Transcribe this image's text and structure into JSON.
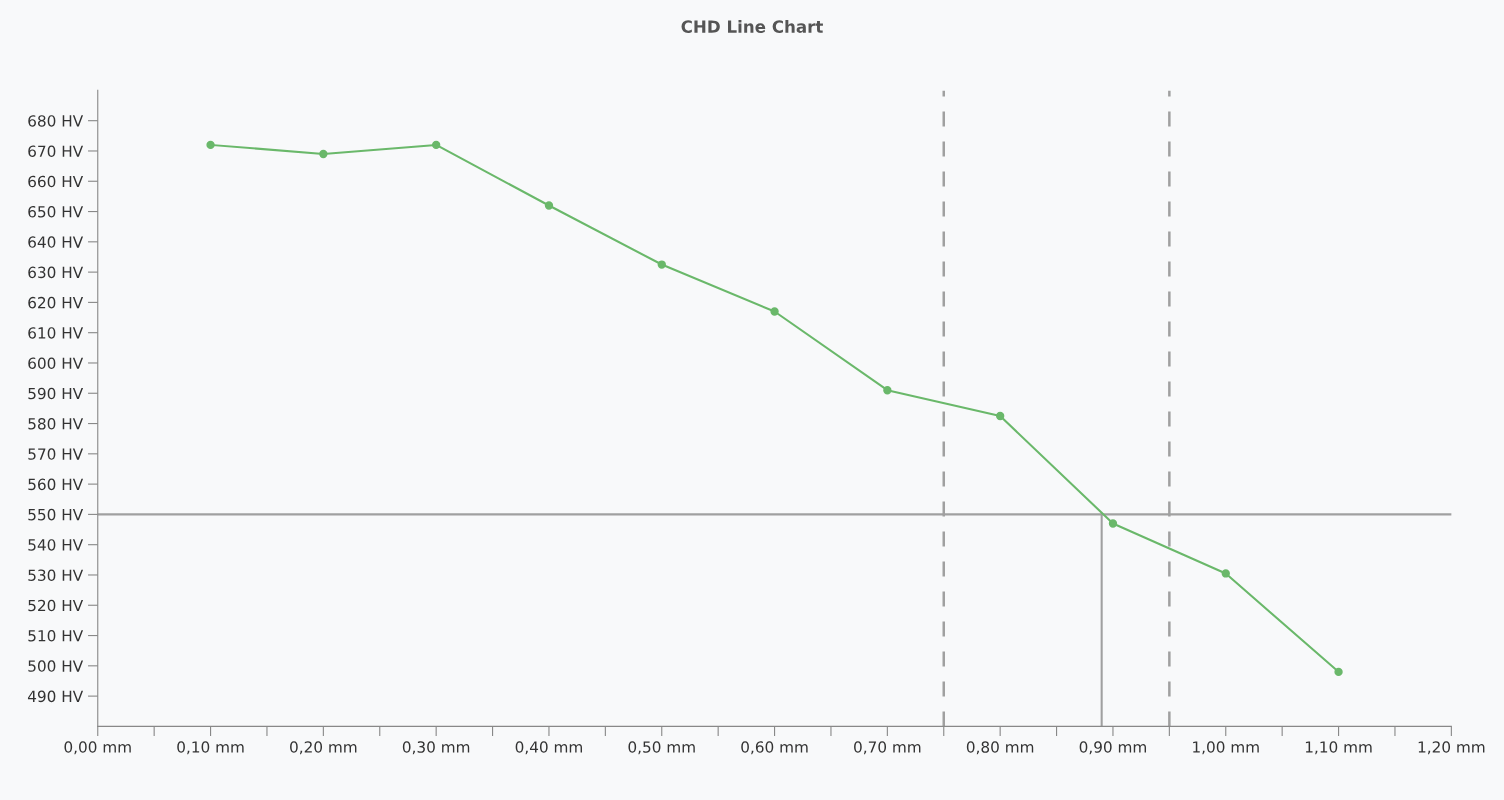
{
  "chart_data": {
    "type": "line",
    "title": "CHD Line Chart",
    "xlim": [
      0,
      1.2
    ],
    "xticks": [
      {
        "value": 0,
        "label": "0,00 mm"
      },
      {
        "value": 0.05,
        "label": null
      },
      {
        "value": 0.1,
        "label": "0,10 mm"
      },
      {
        "value": 0.15,
        "label": null
      },
      {
        "value": 0.2,
        "label": "0,20 mm"
      },
      {
        "value": 0.25,
        "label": null
      },
      {
        "value": 0.3,
        "label": "0,30 mm"
      },
      {
        "value": 0.35,
        "label": null
      },
      {
        "value": 0.4,
        "label": "0,40 mm"
      },
      {
        "value": 0.45,
        "label": null
      },
      {
        "value": 0.5,
        "label": "0,50 mm"
      },
      {
        "value": 0.55,
        "label": null
      },
      {
        "value": 0.6,
        "label": "0,60 mm"
      },
      {
        "value": 0.65,
        "label": null
      },
      {
        "value": 0.7,
        "label": "0,70 mm"
      },
      {
        "value": 0.75,
        "label": null
      },
      {
        "value": 0.8,
        "label": "0,80 mm"
      },
      {
        "value": 0.85,
        "label": null
      },
      {
        "value": 0.9,
        "label": "0,90 mm"
      },
      {
        "value": 0.95,
        "label": null
      },
      {
        "value": 1.0,
        "label": "1,00 mm"
      },
      {
        "value": 1.05,
        "label": null
      },
      {
        "value": 1.1,
        "label": "1,10 mm"
      },
      {
        "value": 1.15,
        "label": null
      },
      {
        "value": 1.2,
        "label": "1,20 mm"
      }
    ],
    "ylim": [
      480,
      690
    ],
    "yticks": [
      {
        "value": 490,
        "label": "490 HV"
      },
      {
        "value": 500,
        "label": "500 HV"
      },
      {
        "value": 510,
        "label": "510 HV"
      },
      {
        "value": 520,
        "label": "520 HV"
      },
      {
        "value": 530,
        "label": "530 HV"
      },
      {
        "value": 540,
        "label": "540 HV"
      },
      {
        "value": 550,
        "label": "550 HV"
      },
      {
        "value": 560,
        "label": "560 HV"
      },
      {
        "value": 570,
        "label": "570 HV"
      },
      {
        "value": 580,
        "label": "580 HV"
      },
      {
        "value": 590,
        "label": "590 HV"
      },
      {
        "value": 600,
        "label": "600 HV"
      },
      {
        "value": 610,
        "label": "610 HV"
      },
      {
        "value": 620,
        "label": "620 HV"
      },
      {
        "value": 630,
        "label": "630 HV"
      },
      {
        "value": 640,
        "label": "640 HV"
      },
      {
        "value": 650,
        "label": "650 HV"
      },
      {
        "value": 660,
        "label": "660 HV"
      },
      {
        "value": 670,
        "label": "670 HV"
      },
      {
        "value": 680,
        "label": "680 HV"
      }
    ],
    "grid": false,
    "series": [
      {
        "color": "#6ab86a",
        "marker": "circle",
        "x": [
          0.1,
          0.2,
          0.3,
          0.4,
          0.5,
          0.6,
          0.7,
          0.8,
          0.9,
          1.0,
          1.1
        ],
        "values": [
          672,
          669,
          672,
          652,
          632.5,
          617,
          591,
          582.5,
          547,
          530.5,
          498
        ]
      },
      {
        "color": "#a0a0a0",
        "marker": "none",
        "x": [
          0.89,
          0.89
        ],
        "values": [
          480,
          550
        ]
      }
    ],
    "ref_lines": [
      {
        "axis": "y",
        "value": 550,
        "color": "#a0a0a0",
        "line_style": "solid"
      },
      {
        "axis": "x",
        "value": 0.75,
        "color": "#a0a0a0",
        "line_style": "dashed"
      },
      {
        "axis": "x",
        "value": 0.95,
        "color": "#a0a0a0",
        "line_style": "dashed"
      }
    ]
  }
}
